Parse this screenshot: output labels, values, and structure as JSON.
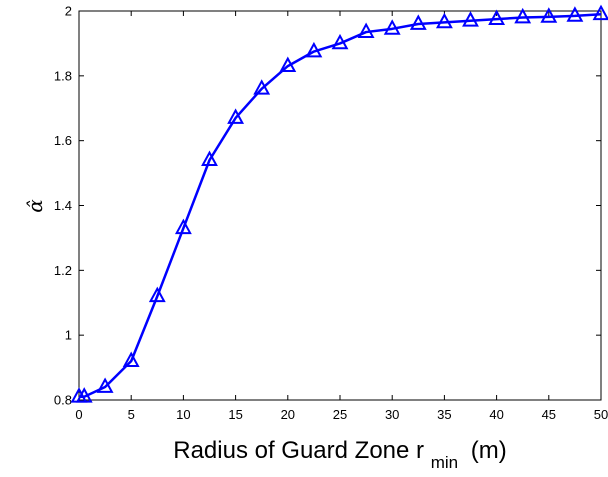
{
  "chart_data": {
    "type": "line",
    "title": "",
    "xlabel": "Radius of Guard Zone r",
    "xlabel_sub": "min",
    "xlabel_unit": "(m)",
    "ylabel": "α̂",
    "xlim": [
      0,
      50
    ],
    "ylim": [
      0.8,
      2
    ],
    "xticks": [
      0,
      5,
      10,
      15,
      20,
      25,
      30,
      35,
      40,
      45,
      50
    ],
    "yticks": [
      0.8,
      1,
      1.2,
      1.4,
      1.6,
      1.8,
      2
    ],
    "xtick_labels": [
      "0",
      "5",
      "10",
      "15",
      "20",
      "25",
      "30",
      "35",
      "40",
      "45",
      "50"
    ],
    "ytick_labels": [
      "0.8",
      "1",
      "1.2",
      "1.4",
      "1.6",
      "1.8",
      "2"
    ],
    "grid": false,
    "series": [
      {
        "color": "#0000ff",
        "marker": "triangle",
        "x": [
          0,
          0.5,
          2.5,
          5,
          7.5,
          10,
          12.5,
          15,
          17.5,
          20,
          22.5,
          25,
          27.5,
          30,
          32.5,
          35,
          37.5,
          40,
          42.5,
          45,
          47.5,
          50
        ],
        "y": [
          0.81,
          0.81,
          0.84,
          0.92,
          1.12,
          1.33,
          1.54,
          1.67,
          1.76,
          1.83,
          1.875,
          1.9,
          1.935,
          1.945,
          1.96,
          1.965,
          1.97,
          1.975,
          1.98,
          1.982,
          1.985,
          1.99
        ]
      }
    ]
  }
}
